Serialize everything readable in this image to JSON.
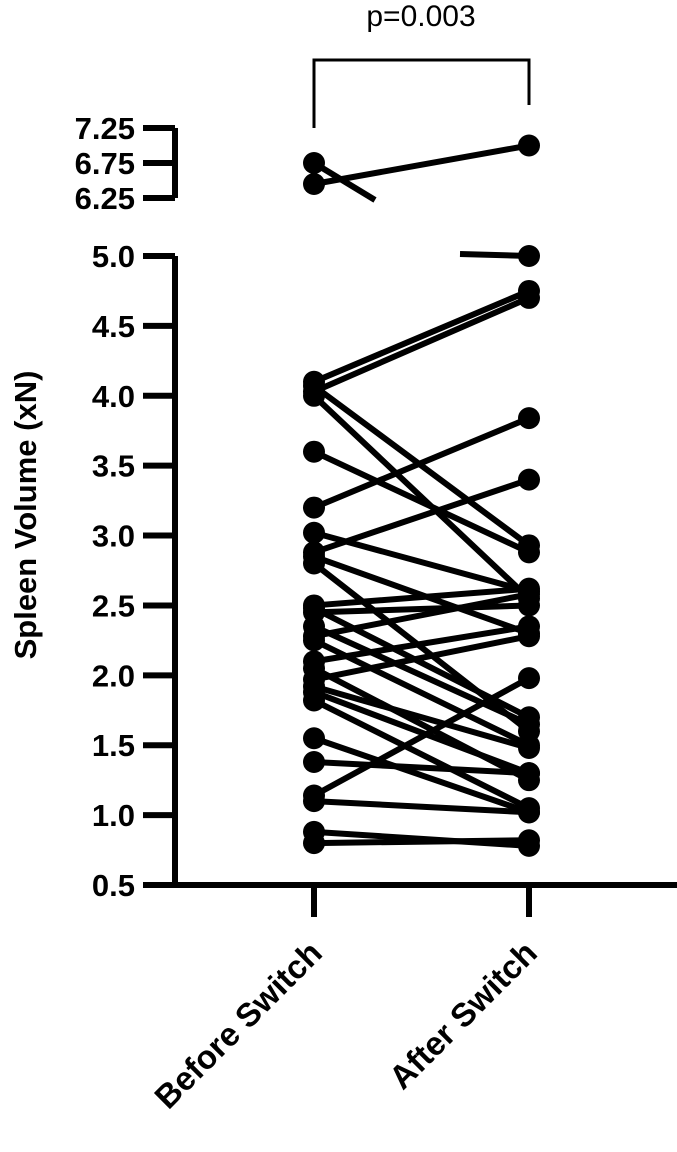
{
  "chart_data": {
    "type": "line",
    "subtype": "paired before-after dot plot with broken y-axis",
    "ylabel": "Spleen Volume (xN)",
    "categories": [
      "Before Switch",
      "After Switch"
    ],
    "annotation": "p=0.003",
    "y_axis": {
      "lower_segment": {
        "range": [
          0.5,
          5.0
        ],
        "ticks": [
          "0.5",
          "1.0",
          "1.5",
          "2.0",
          "2.5",
          "3.0",
          "3.5",
          "4.0",
          "4.5",
          "5.0"
        ]
      },
      "upper_segment": {
        "range": [
          6.25,
          7.25
        ],
        "ticks": [
          "6.25",
          "6.75",
          "7.25"
        ]
      }
    },
    "grid": false,
    "legend": "none",
    "line_color": "#000000",
    "pairs": [
      [
        6.75,
        5.0
      ],
      [
        6.45,
        7.0
      ],
      [
        4.1,
        4.75
      ],
      [
        4.07,
        2.93
      ],
      [
        4.03,
        4.7
      ],
      [
        4.0,
        2.55
      ],
      [
        3.6,
        2.88
      ],
      [
        3.2,
        3.84
      ],
      [
        3.02,
        2.6
      ],
      [
        2.88,
        3.4
      ],
      [
        2.85,
        2.3
      ],
      [
        2.8,
        1.6
      ],
      [
        2.5,
        2.62
      ],
      [
        2.48,
        1.7
      ],
      [
        2.45,
        2.5
      ],
      [
        2.35,
        1.65
      ],
      [
        2.28,
        2.58
      ],
      [
        2.25,
        1.5
      ],
      [
        2.1,
        2.35
      ],
      [
        2.05,
        1.25
      ],
      [
        1.97,
        2.28
      ],
      [
        1.92,
        1.48
      ],
      [
        1.88,
        1.3
      ],
      [
        1.82,
        1.05
      ],
      [
        1.55,
        1.02
      ],
      [
        1.38,
        1.3
      ],
      [
        1.14,
        1.98
      ],
      [
        1.1,
        1.02
      ],
      [
        0.88,
        0.78
      ],
      [
        0.8,
        0.82
      ]
    ]
  }
}
